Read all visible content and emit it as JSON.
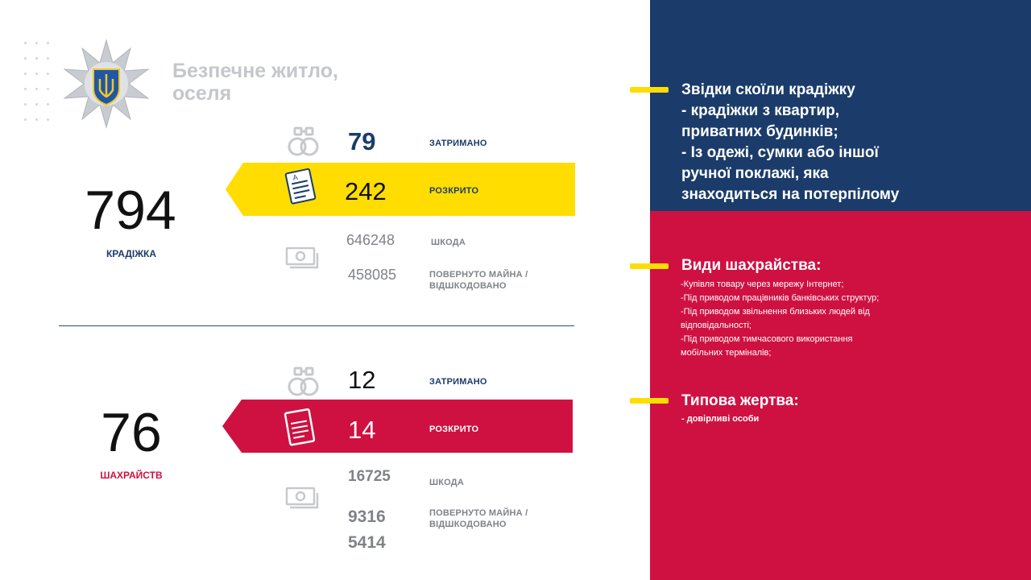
{
  "header": {
    "title_line1": "Безпечне житло,",
    "title_line2": "оселя"
  },
  "theft": {
    "count": "794",
    "label": "КРАДІЖКА",
    "detained_value": "79",
    "detained_label": "ЗАТРИМАНО",
    "solved_value": "242",
    "solved_label": "РОЗКРИТО",
    "damage_value": "646248",
    "damage_label": "ШКОДА",
    "returned_value": "458085",
    "returned_label_line1": "ПОВЕРНУТО МАЙНА /",
    "returned_label_line2": "ВІДШКОДОВАНО"
  },
  "fraud": {
    "count": "76",
    "label": "ШАХРАЙСТВ",
    "detained_value": "12",
    "detained_label": "ЗАТРИМАНО",
    "solved_value": "14",
    "solved_label": "РОЗКРИТО",
    "damage_value": "16725",
    "damage_label": "ШКОДА",
    "returned_value_line1": "9316",
    "returned_value_line2": "5414",
    "returned_label_line1": "ПОВЕРНУТО МАЙНА /",
    "returned_label_line2": "ВІДШКОДОВАНО"
  },
  "right_panel": {
    "theft_source": {
      "lines": [
        "Звідки скоїли крадіжку",
        "- крадіжки з квартир,",
        "приватних будинків;",
        "- Із одежі, сумки або іншої",
        "ручної поклажі, яка",
        "знаходиться на потерпілому"
      ]
    },
    "fraud_types": {
      "heading": "Види шахрайства:",
      "lines": [
        "-Купівля товару через мережу Інтернет;",
        "-Під приводом працівників банківських структур;",
        "-Під приводом звільнення близьких людей від",
        "відповідальності;",
        "-Під приводом тимчасового використання",
        "мобільних терміналів;"
      ]
    },
    "victim": {
      "heading": "Типова жертва:",
      "text": "- довірливі особи"
    }
  },
  "colors": {
    "navy": "#1b3c6a",
    "crimson": "#cf1141",
    "yellow": "#ffdd00",
    "title_gray": "#c4c7cb"
  },
  "icons": [
    "handcuffs-icon",
    "document-icon",
    "money-icon",
    "police-emblem-icon"
  ]
}
